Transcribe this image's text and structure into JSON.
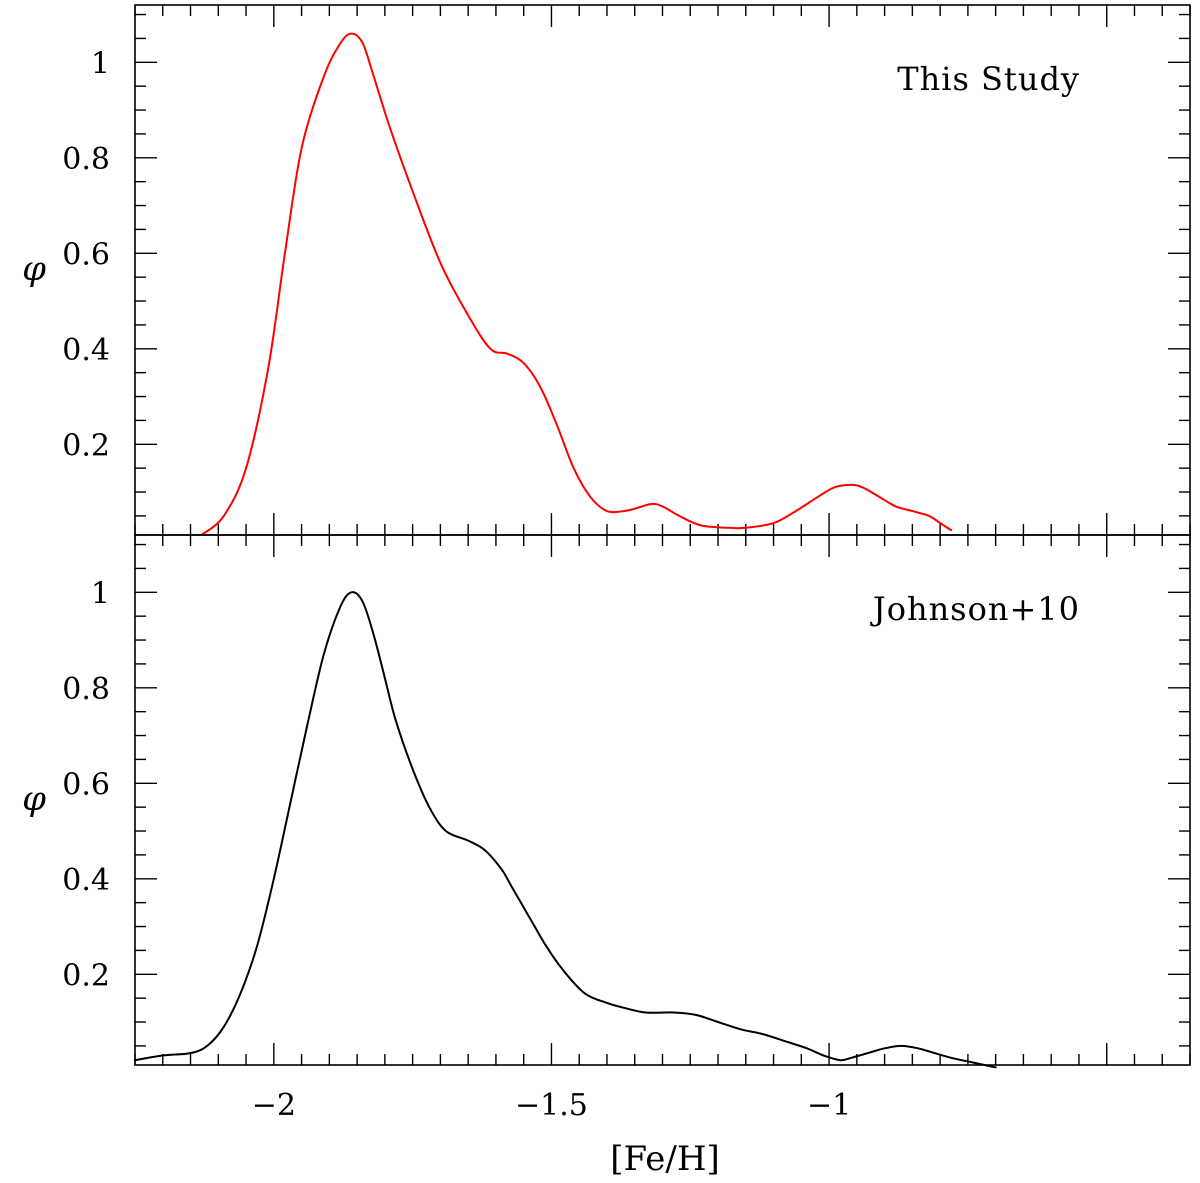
{
  "chart_data": [
    {
      "type": "line",
      "panel": "top",
      "annotation": "This Study",
      "xlabel": "[Fe/H]",
      "ylabel": "φ",
      "xlim": [
        -2.25,
        -0.35
      ],
      "ylim": [
        0.01,
        1.12
      ],
      "x_major_ticks": [
        -2,
        -1.5,
        -1
      ],
      "x_tick_labels": [],
      "y_major_ticks": [
        0.2,
        0.4,
        0.6,
        0.8,
        1
      ],
      "y_tick_labels": [
        "0.2",
        "0.4",
        "0.6",
        "0.8",
        "1"
      ],
      "series": [
        {
          "name": "This Study",
          "color": "#ff0000",
          "x": [
            -2.13,
            -2.09,
            -2.05,
            -2.01,
            -1.98,
            -1.95,
            -1.91,
            -1.88,
            -1.86,
            -1.84,
            -1.82,
            -1.79,
            -1.75,
            -1.7,
            -1.65,
            -1.61,
            -1.58,
            -1.55,
            -1.52,
            -1.49,
            -1.46,
            -1.43,
            -1.4,
            -1.37,
            -1.35,
            -1.32,
            -1.3,
            -1.27,
            -1.23,
            -1.18,
            -1.15,
            -1.1,
            -1.06,
            -1.02,
            -0.99,
            -0.96,
            -0.94,
            -0.91,
            -0.88,
            -0.85,
            -0.82,
            -0.8,
            -0.78
          ],
          "y": [
            0.01,
            0.05,
            0.15,
            0.36,
            0.6,
            0.82,
            0.97,
            1.04,
            1.06,
            1.04,
            0.97,
            0.86,
            0.73,
            0.58,
            0.47,
            0.4,
            0.39,
            0.37,
            0.32,
            0.24,
            0.15,
            0.09,
            0.06,
            0.06,
            0.065,
            0.075,
            0.07,
            0.05,
            0.03,
            0.025,
            0.025,
            0.035,
            0.06,
            0.09,
            0.11,
            0.115,
            0.11,
            0.09,
            0.07,
            0.06,
            0.05,
            0.035,
            0.02
          ]
        }
      ]
    },
    {
      "type": "line",
      "panel": "bottom",
      "annotation": "Johnson+10",
      "xlabel": "[Fe/H]",
      "ylabel": "φ",
      "xlim": [
        -2.25,
        -0.35
      ],
      "ylim": [
        0.01,
        1.12
      ],
      "x_major_ticks": [
        -2,
        -1.5,
        -1
      ],
      "x_tick_labels": [
        "−2",
        "−1.5",
        "−1"
      ],
      "y_major_ticks": [
        0.2,
        0.4,
        0.6,
        0.8,
        1
      ],
      "y_tick_labels": [
        "0.2",
        "0.4",
        "0.6",
        "0.8",
        "1"
      ],
      "series": [
        {
          "name": "Johnson+10",
          "color": "#000000",
          "x": [
            -2.25,
            -2.2,
            -2.15,
            -2.12,
            -2.09,
            -2.06,
            -2.03,
            -2.0,
            -1.97,
            -1.94,
            -1.91,
            -1.88,
            -1.86,
            -1.84,
            -1.82,
            -1.8,
            -1.78,
            -1.75,
            -1.72,
            -1.69,
            -1.65,
            -1.62,
            -1.59,
            -1.57,
            -1.54,
            -1.51,
            -1.48,
            -1.44,
            -1.4,
            -1.37,
            -1.33,
            -1.28,
            -1.24,
            -1.2,
            -1.16,
            -1.12,
            -1.08,
            -1.04,
            -1.01,
            -0.98,
            -0.96,
            -0.93,
            -0.9,
            -0.87,
            -0.84,
            -0.81,
            -0.78,
            -0.74,
            -0.7
          ],
          "y": [
            0.02,
            0.03,
            0.035,
            0.05,
            0.09,
            0.16,
            0.26,
            0.4,
            0.56,
            0.72,
            0.87,
            0.97,
            1.0,
            0.98,
            0.91,
            0.82,
            0.73,
            0.63,
            0.55,
            0.5,
            0.48,
            0.46,
            0.42,
            0.38,
            0.32,
            0.26,
            0.21,
            0.16,
            0.14,
            0.13,
            0.12,
            0.12,
            0.115,
            0.1,
            0.085,
            0.075,
            0.06,
            0.045,
            0.03,
            0.02,
            0.025,
            0.035,
            0.045,
            0.05,
            0.045,
            0.035,
            0.025,
            0.015,
            0.005
          ]
        }
      ]
    }
  ]
}
